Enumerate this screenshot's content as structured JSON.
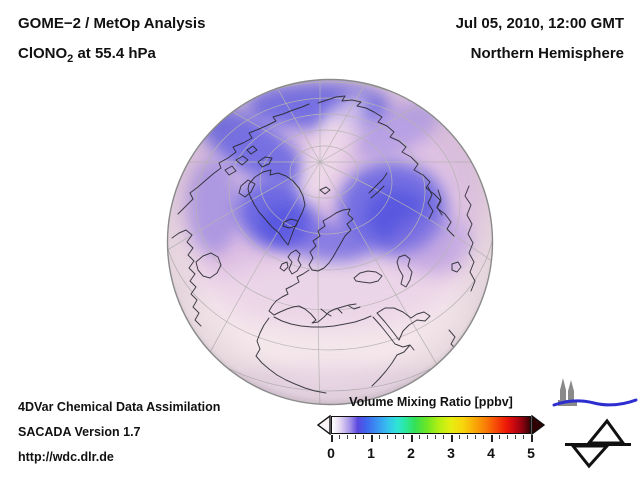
{
  "header": {
    "title_line1": "GOME−2 / MetOp Analysis",
    "species_prefix": "ClONO",
    "species_sub": "2",
    "species_suffix": " at 55.4 hPa",
    "datetime": "Jul 05, 2010, 12:00 GMT",
    "region": "Northern Hemisphere"
  },
  "credits": {
    "line1": "4DVar Chemical Data Assimilation",
    "line2": "SACADA Version 1.7",
    "line3": "http://wdc.dlr.de"
  },
  "colorbar": {
    "label": "Volume Mixing Ratio [ppbv]",
    "min": 0,
    "max": 5,
    "minor_step": 0.2,
    "tick_labels": [
      "0",
      "1",
      "2",
      "3",
      "4",
      "5"
    ],
    "left_arrow_color": "#f7f2f6",
    "right_arrow_color": "#2f0103",
    "gradient_stops": [
      "#ffffff 0%",
      "#e6d9f2 4%",
      "#a694e8 9%",
      "#5a48e0 13%",
      "#3f63ee 17%",
      "#3b8df2 22%",
      "#35c0ee 28%",
      "#2ee4d6 33%",
      "#2ce8a0 37%",
      "#35e055 42%",
      "#6ee623 48%",
      "#b2ef14 54%",
      "#e6ee10 60%",
      "#f8d60c 66%",
      "#f9a907 72%",
      "#f97a06 78%",
      "#f64806 83%",
      "#ee1907 88%",
      "#c90710 92%",
      "#8f0410 96%",
      "#3a0204 100%"
    ]
  },
  "map": {
    "type": "orthographic-hemisphere",
    "center": "North Pole / Europe sector",
    "field": "ClONO2 volume mixing ratio",
    "unit": "ppbv",
    "value_range": [
      0,
      5
    ],
    "low_value_color": "#f2e1e8",
    "mid_value_color": "#cda6de",
    "high_value_color": "#5b5be2",
    "coastline_color": "#26262e",
    "graticule_color": "#b8b4b4",
    "high_regions": "blue band over Arctic Canada, Greenland, Scandinavia and western Siberia (~0.5–1 ppbv)",
    "low_regions": "pale pink over mid and low latitudes (~0–0.2 ppbv)"
  },
  "logos": {
    "riu_text": "RIU",
    "riu_blue": "#2424c8",
    "riu_gray": "#8a8a8a",
    "dlr_text": "DLR",
    "dlr_black": "#111111"
  }
}
